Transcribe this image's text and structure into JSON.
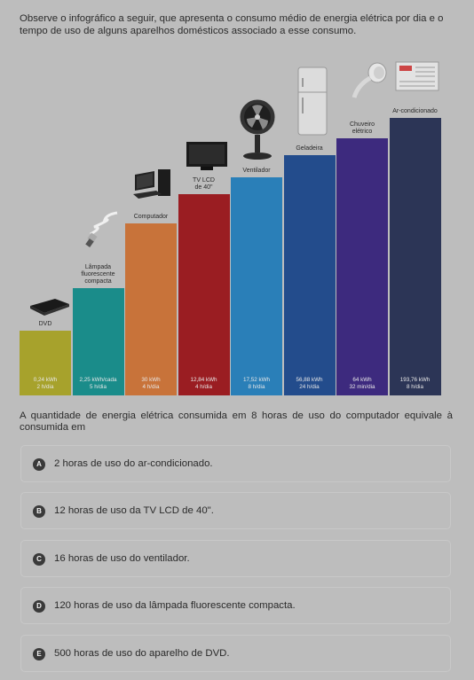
{
  "intro_text": "Observe o infográfico a seguir, que apresenta o consumo médio de energia elétrica por dia e o tempo de uso de alguns aparelhos domésticos associado a esse consumo.",
  "chart_data": {
    "type": "bar",
    "categories": [
      "DVD",
      "Lâmpada fluorescente compacta",
      "Computador",
      "TV LCD de 40\"",
      "Ventilador",
      "Geladeira",
      "Chuveiro elétrico",
      "Ar-condicionado"
    ],
    "labels": [
      [
        "DVD"
      ],
      [
        "Lâmpada",
        "fluorescente",
        "compacta"
      ],
      [
        "Computador"
      ],
      [
        "TV LCD",
        "de 40\""
      ],
      [
        "Ventilador"
      ],
      [
        "Geladeira"
      ],
      [
        "Chuveiro",
        "elétrico"
      ],
      [
        "Ar-condicionado"
      ]
    ],
    "consumption_labels": [
      "0,24 kWh",
      "2,25 kWh/cada",
      "30 kWh",
      "12,84 kWh",
      "17,52 kWh",
      "56,88 kWh",
      "64 kWh",
      "193,76 kWh"
    ],
    "usage_labels": [
      "2 h/dia",
      "5 h/dia",
      "4 h/dia",
      "4 h/dia",
      "8 h/dia",
      "24 h/dia",
      "32 min/dia",
      "8 h/dia"
    ],
    "colors": [
      "#a7a22c",
      "#1a8c8a",
      "#c8733a",
      "#9a1d22",
      "#2a7fb8",
      "#234c8c",
      "#3d2a7e",
      "#2c3556"
    ],
    "bar_levels": [
      0.19,
      0.315,
      0.505,
      0.59,
      0.64,
      0.705,
      0.755,
      0.815
    ]
  },
  "question_text": "A quantidade de energia elétrica consumida em 8 horas de uso do computador equivale à consumida em",
  "options": [
    {
      "letter": "A",
      "text": "2 horas de uso do ar-condicionado."
    },
    {
      "letter": "B",
      "text": "12 horas de uso da TV LCD de 40\"."
    },
    {
      "letter": "C",
      "text": "16 horas de uso do ventilador."
    },
    {
      "letter": "D",
      "text": "120 horas de uso da lâmpada fluorescente compacta."
    },
    {
      "letter": "E",
      "text": "500 horas de uso do aparelho de DVD."
    }
  ]
}
